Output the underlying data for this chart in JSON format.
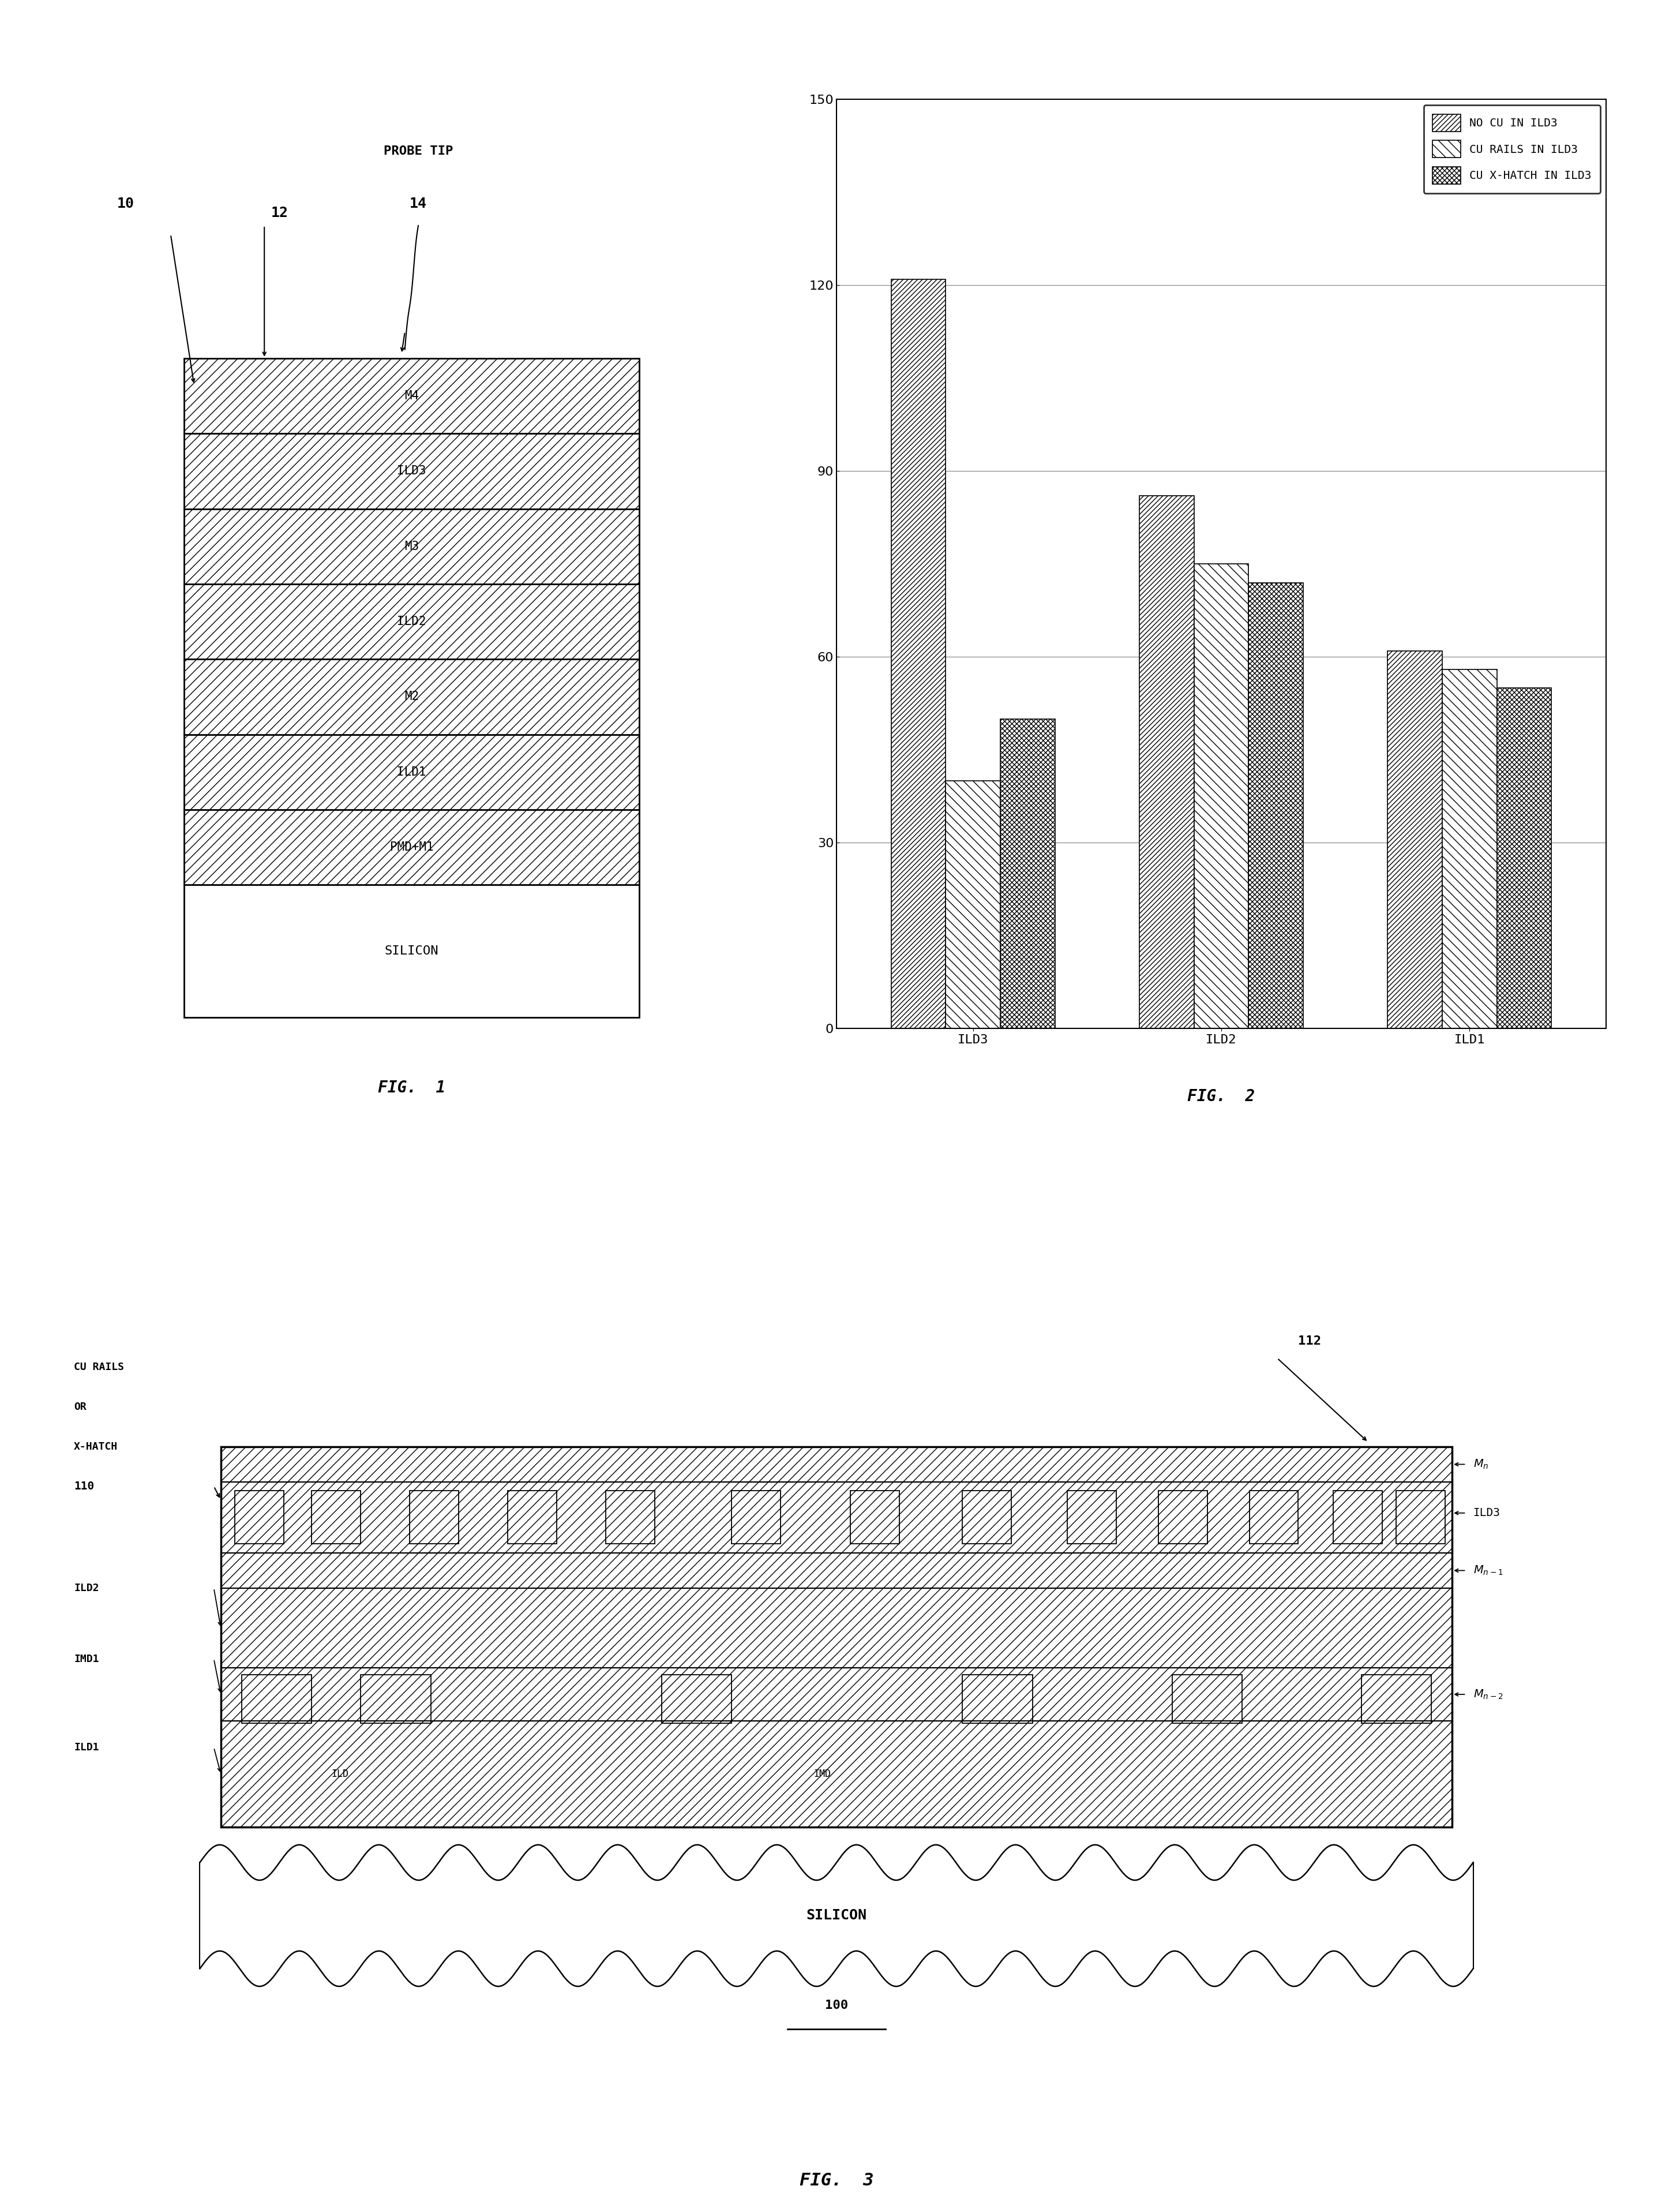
{
  "fig_width": 29.0,
  "fig_height": 38.33,
  "bg_color": "#ffffff",
  "fig1": {
    "layers_top_to_bottom": [
      "M4",
      "ILD3",
      "M3",
      "ILD2",
      "M2",
      "ILD1",
      "PMD+M1",
      "SILICON"
    ],
    "caption": "FIG.  1"
  },
  "fig2": {
    "categories": [
      "ILD3",
      "ILD2",
      "ILD1"
    ],
    "series": [
      {
        "name": "NO CU IN ILD3",
        "values": [
          121,
          86,
          61
        ]
      },
      {
        "name": "CU RAILS IN ILD3",
        "values": [
          40,
          75,
          58
        ]
      },
      {
        "name": "CU X-HATCH IN ILD3",
        "values": [
          50,
          72,
          55
        ]
      }
    ],
    "ylim": [
      0,
      150
    ],
    "yticks": [
      0,
      30,
      60,
      90,
      120,
      150
    ],
    "caption": "FIG.  2",
    "bar_width": 0.22
  },
  "fig3": {
    "silicon_label": "SILICON",
    "silicon_num": "100",
    "caption": "FIG.  3"
  }
}
